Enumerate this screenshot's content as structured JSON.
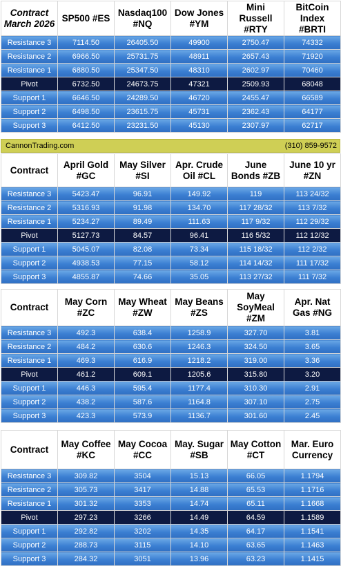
{
  "brand": {
    "site": "CannonTrading.com",
    "phone": "(310) 859-9572"
  },
  "sections": [
    {
      "header": [
        "Contract March 2026",
        "SP500 #ES",
        "Nasdaq100 #NQ",
        "Dow Jones #YM",
        "Mini Russell #RTY",
        "BitCoin Index #BRTI"
      ],
      "rows": [
        [
          "Resistance 3",
          "7114.50",
          "26405.50",
          "49900",
          "2750.47",
          "74332"
        ],
        [
          "Resistance 2",
          "6966.50",
          "25731.75",
          "48911",
          "2657.43",
          "71920"
        ],
        [
          "Resistance 1",
          "6880.50",
          "25347.50",
          "48310",
          "2602.97",
          "70460"
        ],
        [
          "Pivot",
          "6732.50",
          "24673.75",
          "47321",
          "2509.93",
          "68048"
        ],
        [
          "Support 1",
          "6646.50",
          "24289.50",
          "46720",
          "2455.47",
          "66589"
        ],
        [
          "Support 2",
          "6498.50",
          "23615.75",
          "45731",
          "2362.43",
          "64177"
        ],
        [
          "Support 3",
          "6412.50",
          "23231.50",
          "45130",
          "2307.97",
          "62717"
        ]
      ]
    },
    {
      "header": [
        "Contract",
        "April Gold #GC",
        "May Silver #SI",
        "Apr. Crude Oil #CL",
        "June Bonds #ZB",
        "June 10 yr #ZN"
      ],
      "rows": [
        [
          "Resistance 3",
          "5423.47",
          "96.91",
          "149.92",
          "119",
          "113 24/32"
        ],
        [
          "Resistance 2",
          "5316.93",
          "91.98",
          "134.70",
          "117 28/32",
          "113  7/32"
        ],
        [
          "Resistance 1",
          "5234.27",
          "89.49",
          "111.63",
          "117  9/32",
          "112 29/32"
        ],
        [
          "Pivot",
          "5127.73",
          "84.57",
          "96.41",
          "116  5/32",
          "112 12/32"
        ],
        [
          "Support 1",
          "5045.07",
          "82.08",
          "73.34",
          "115 18/32",
          "112  2/32"
        ],
        [
          "Support 2",
          "4938.53",
          "77.15",
          "58.12",
          "114 14/32",
          "111 17/32"
        ],
        [
          "Support 3",
          "4855.87",
          "74.66",
          "35.05",
          "113 27/32",
          "111  7/32"
        ]
      ]
    },
    {
      "header": [
        "Contract",
        "May Corn #ZC",
        "May  Wheat #ZW",
        "May Beans #ZS",
        "May SoyMeal #ZM",
        "Apr. Nat Gas #NG"
      ],
      "rows": [
        [
          "Resistance 3",
          "492.3",
          "638.4",
          "1258.9",
          "327.70",
          "3.81"
        ],
        [
          "Resistance 2",
          "484.2",
          "630.6",
          "1246.3",
          "324.50",
          "3.65"
        ],
        [
          "Resistance 1",
          "469.3",
          "616.9",
          "1218.2",
          "319.00",
          "3.36"
        ],
        [
          "Pivot",
          "461.2",
          "609.1",
          "1205.6",
          "315.80",
          "3.20"
        ],
        [
          "Support 1",
          "446.3",
          "595.4",
          "1177.4",
          "310.30",
          "2.91"
        ],
        [
          "Support 2",
          "438.2",
          "587.6",
          "1164.8",
          "307.10",
          "2.75"
        ],
        [
          "Support 3",
          "423.3",
          "573.9",
          "1136.7",
          "301.60",
          "2.45"
        ]
      ]
    },
    {
      "header": [
        "Contract",
        "May Coffee #KC",
        "May Cocoa #CC",
        "May. Sugar #SB",
        "May Cotton #CT",
        "Mar. Euro Currency"
      ],
      "rows": [
        [
          "Resistance 3",
          "309.82",
          "3504",
          "15.13",
          "66.05",
          "1.1794"
        ],
        [
          "Resistance 2",
          "305.73",
          "3417",
          "14.88",
          "65.53",
          "1.1716"
        ],
        [
          "Resistance 1",
          "301.32",
          "3353",
          "14.74",
          "65.11",
          "1.1668"
        ],
        [
          "Pivot",
          "297.23",
          "3266",
          "14.49",
          "64.59",
          "1.1589"
        ],
        [
          "Support 1",
          "292.82",
          "3202",
          "14.35",
          "64.17",
          "1.1541"
        ],
        [
          "Support 2",
          "288.73",
          "3115",
          "14.10",
          "63.65",
          "1.1463"
        ],
        [
          "Support 3",
          "284.32",
          "3051",
          "13.96",
          "63.23",
          "1.1415"
        ]
      ]
    }
  ]
}
